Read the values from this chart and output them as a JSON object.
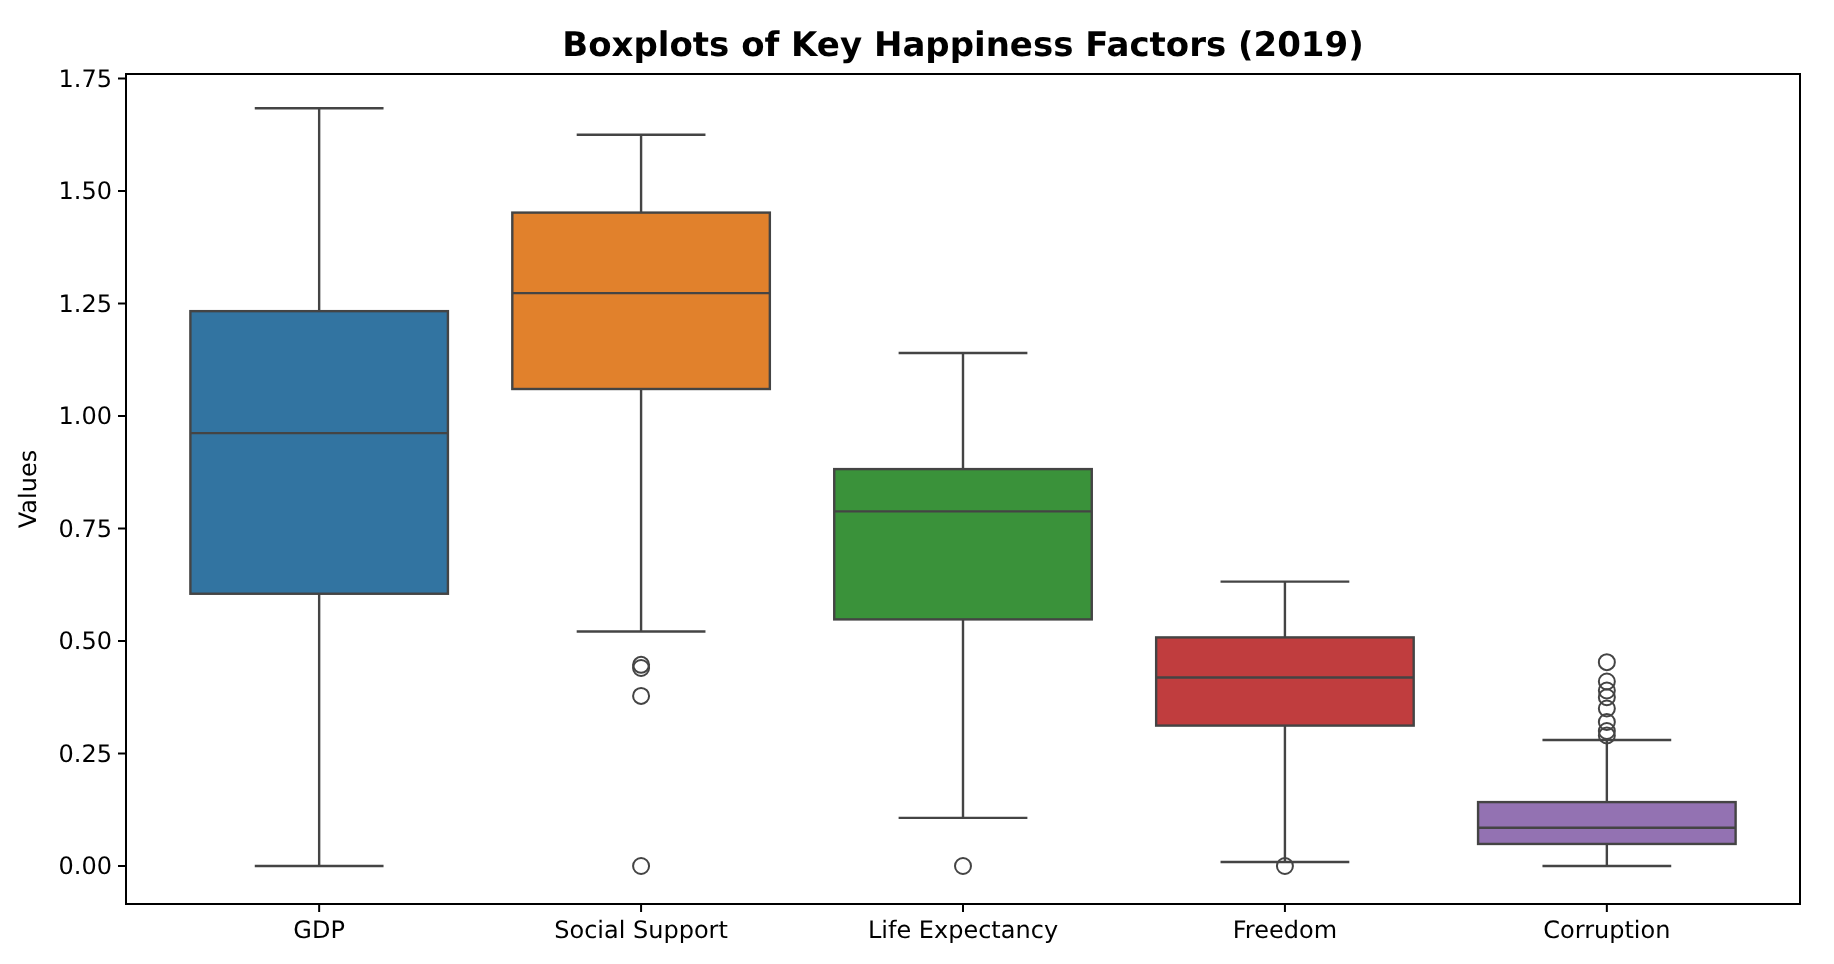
{
  "chart_data": {
    "type": "box",
    "title": "Boxplots of Key Happiness Factors (2019)",
    "ylabel": "Values",
    "categories": [
      "GDP",
      "Social Support",
      "Life Expectancy",
      "Freedom",
      "Corruption"
    ],
    "colors": [
      "#3274a1",
      "#e1812c",
      "#3a923a",
      "#c03d3e",
      "#9372b2"
    ],
    "boxes": [
      {
        "low": 0,
        "q1": 0.605,
        "median": 0.962,
        "q3": 1.233,
        "high": 1.684
      },
      {
        "low": 0.521,
        "q1": 1.06,
        "median": 1.273,
        "q3": 1.452,
        "high": 1.625,
        "outliers": [
          0.447,
          0.44,
          0.378,
          0
        ]
      },
      {
        "low": 0.107,
        "q1": 0.548,
        "median": 0.788,
        "q3": 0.882,
        "high": 1.14,
        "outliers": [
          0
        ]
      },
      {
        "low": 0.009,
        "q1": 0.312,
        "median": 0.419,
        "q3": 0.508,
        "high": 0.632,
        "outliers": [
          0
        ]
      },
      {
        "low": 0,
        "q1": 0.049,
        "median": 0.085,
        "q3": 0.142,
        "high": 0.28,
        "outliers": [
          0.453,
          0.41,
          0.39,
          0.375,
          0.35,
          0.32,
          0.3,
          0.29
        ]
      }
    ],
    "ylim": [
      -0.08,
      1.76
    ],
    "yticks": [
      {
        "value": 0,
        "label": "0.00"
      },
      {
        "value": 0.25,
        "label": "0.25"
      },
      {
        "value": 0.5,
        "label": "0.50"
      },
      {
        "value": 0.75,
        "label": "0.75"
      },
      {
        "value": 1,
        "label": "1.00"
      },
      {
        "value": 1.25,
        "label": "1.25"
      },
      {
        "value": 1.5,
        "label": "1.50"
      },
      {
        "value": 1.75,
        "label": "1.75"
      }
    ]
  }
}
